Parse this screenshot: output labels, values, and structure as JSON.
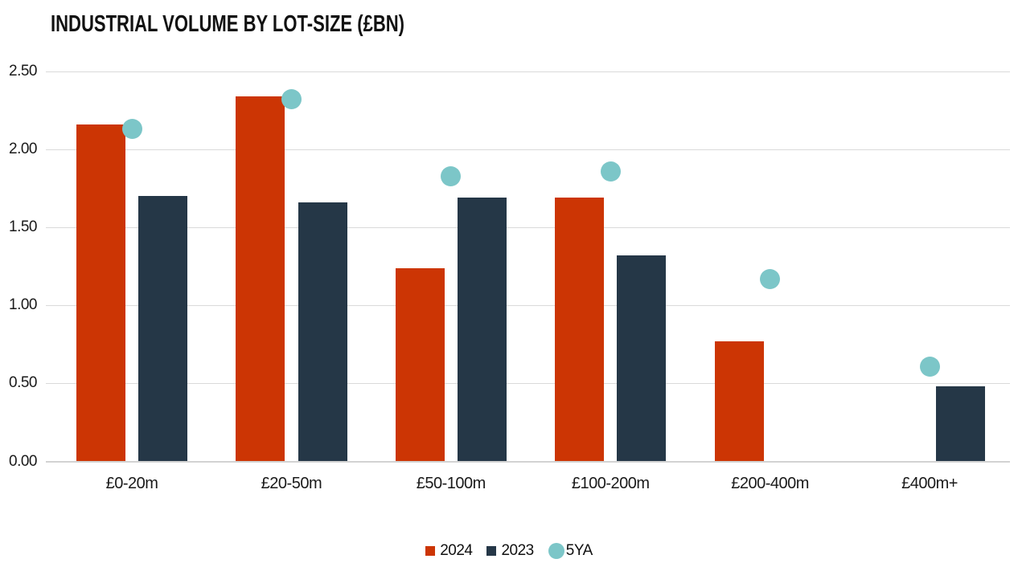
{
  "chart_data": {
    "type": "bar",
    "title": "INDUSTRIAL VOLUME BY LOT-SIZE (£BN)",
    "categories": [
      "£0-20m",
      "£20-50m",
      "£50-100m",
      "£100-200m",
      "£200-400m",
      "£400m+"
    ],
    "series": [
      {
        "name": "2024",
        "type": "bar",
        "color": "#cc3504",
        "values": [
          2.16,
          2.34,
          1.24,
          1.69,
          0.77,
          null
        ]
      },
      {
        "name": "2023",
        "type": "bar",
        "color": "#253747",
        "values": [
          1.7,
          1.66,
          1.69,
          1.32,
          null,
          0.48
        ]
      },
      {
        "name": "5YA",
        "type": "scatter",
        "color": "#7cc6c8",
        "values": [
          2.13,
          2.32,
          1.83,
          1.86,
          1.17,
          0.61
        ]
      }
    ],
    "ylabel": "",
    "xlabel": "",
    "ylim": [
      0,
      2.5
    ],
    "yticks": [
      0,
      0.5,
      1,
      1.5,
      2,
      2.5
    ],
    "ytick_labels": [
      "0.00",
      "0.50",
      "1.00",
      "1.50",
      "2.00",
      "2.50"
    ],
    "grid": "horizontal",
    "legend_position": "bottom"
  }
}
